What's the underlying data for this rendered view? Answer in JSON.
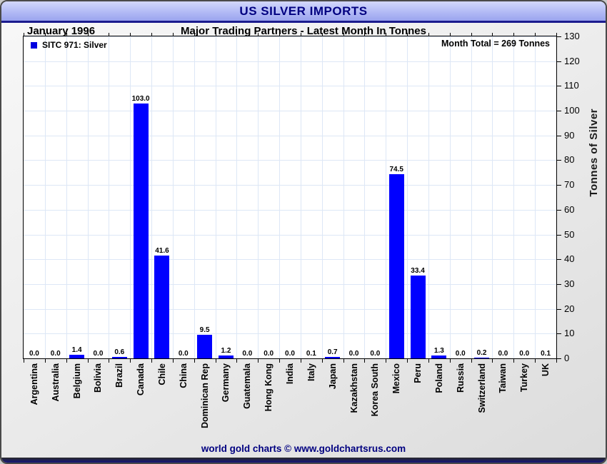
{
  "header": {
    "title": "US SILVER IMPORTS",
    "period": "January 1996",
    "subtitle": "Major Trading Partners - Latest Month In Tonnes"
  },
  "footer": {
    "text": "world gold charts © www.goldchartsrus.com"
  },
  "chart_data": {
    "type": "bar",
    "title": "US SILVER IMPORTS",
    "subtitle": "Major Trading Partners - Latest Month In Tonnes",
    "period": "January 1996",
    "series_name": "SITC 971: Silver",
    "annotation": "Month Total = 269 Tonnes",
    "categories": [
      "Argentina",
      "Australia",
      "Belgium",
      "Bolivia",
      "Brazil",
      "Canada",
      "Chile",
      "China",
      "Dominican Rep",
      "Germany",
      "Guatemala",
      "Hong Kong",
      "India",
      "Italy",
      "Japan",
      "Kazakhstan",
      "Korea South",
      "Mexico",
      "Peru",
      "Poland",
      "Russia",
      "Switzerland",
      "Taiwan",
      "Turkey",
      "UK"
    ],
    "values": [
      0.0,
      0.0,
      1.4,
      0.0,
      0.6,
      103.0,
      41.6,
      0.0,
      9.5,
      1.2,
      0.0,
      0.0,
      0.0,
      0.1,
      0.7,
      0.0,
      0.0,
      74.5,
      33.4,
      1.3,
      0.0,
      0.2,
      0.0,
      0.0,
      0.1
    ],
    "value_label_decimals": 1,
    "xlabel": "",
    "ylabel": "Tonnes of Silver",
    "ylim": [
      0,
      130
    ],
    "ytick_step": 10,
    "y_axis_side": "right",
    "grid": true,
    "legend_position": "top-left",
    "colors": {
      "bar": "#0000FF",
      "grid": "#dde7f6",
      "accent_navy": "#000080",
      "titlebar_top": "#d3d8fb",
      "titlebar_bottom": "#9aa4ee",
      "plot_bg": "#ffffff"
    }
  }
}
